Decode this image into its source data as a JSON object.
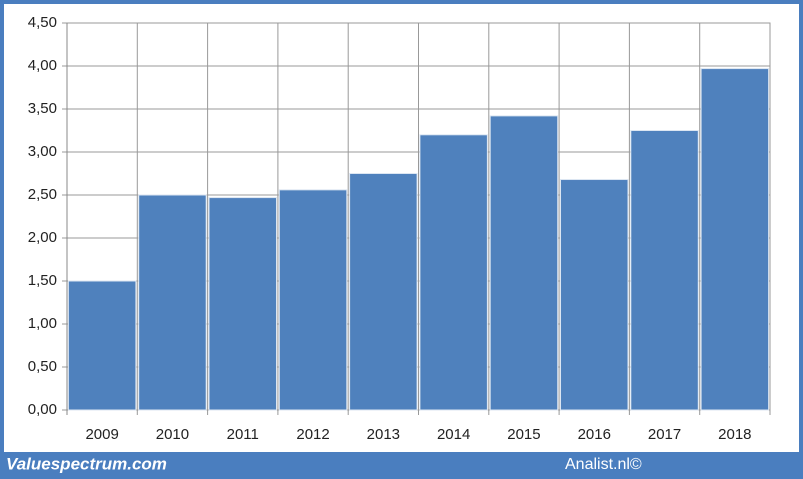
{
  "chart_data": {
    "type": "bar",
    "categories": [
      "2009",
      "2010",
      "2011",
      "2012",
      "2013",
      "2014",
      "2015",
      "2016",
      "2017",
      "2018"
    ],
    "values": [
      1.5,
      2.5,
      2.47,
      2.56,
      2.75,
      3.2,
      3.42,
      2.68,
      3.25,
      3.97
    ],
    "color": "#4f81bd",
    "ylim": [
      0,
      4.5
    ],
    "yticks": [
      {
        "value": 0,
        "label": "0,00"
      },
      {
        "value": 0.5,
        "label": "0,50"
      },
      {
        "value": 1,
        "label": "1,00"
      },
      {
        "value": 1.5,
        "label": "1,50"
      },
      {
        "value": 2,
        "label": "2,00"
      },
      {
        "value": 2.5,
        "label": "2,50"
      },
      {
        "value": 3,
        "label": "3,00"
      },
      {
        "value": 3.5,
        "label": "3,50"
      },
      {
        "value": 4,
        "label": "4,00"
      },
      {
        "value": 4.5,
        "label": "4,50"
      }
    ],
    "grid": true,
    "source": "Valuespectrum.com",
    "credit": "Analist.nl©"
  }
}
